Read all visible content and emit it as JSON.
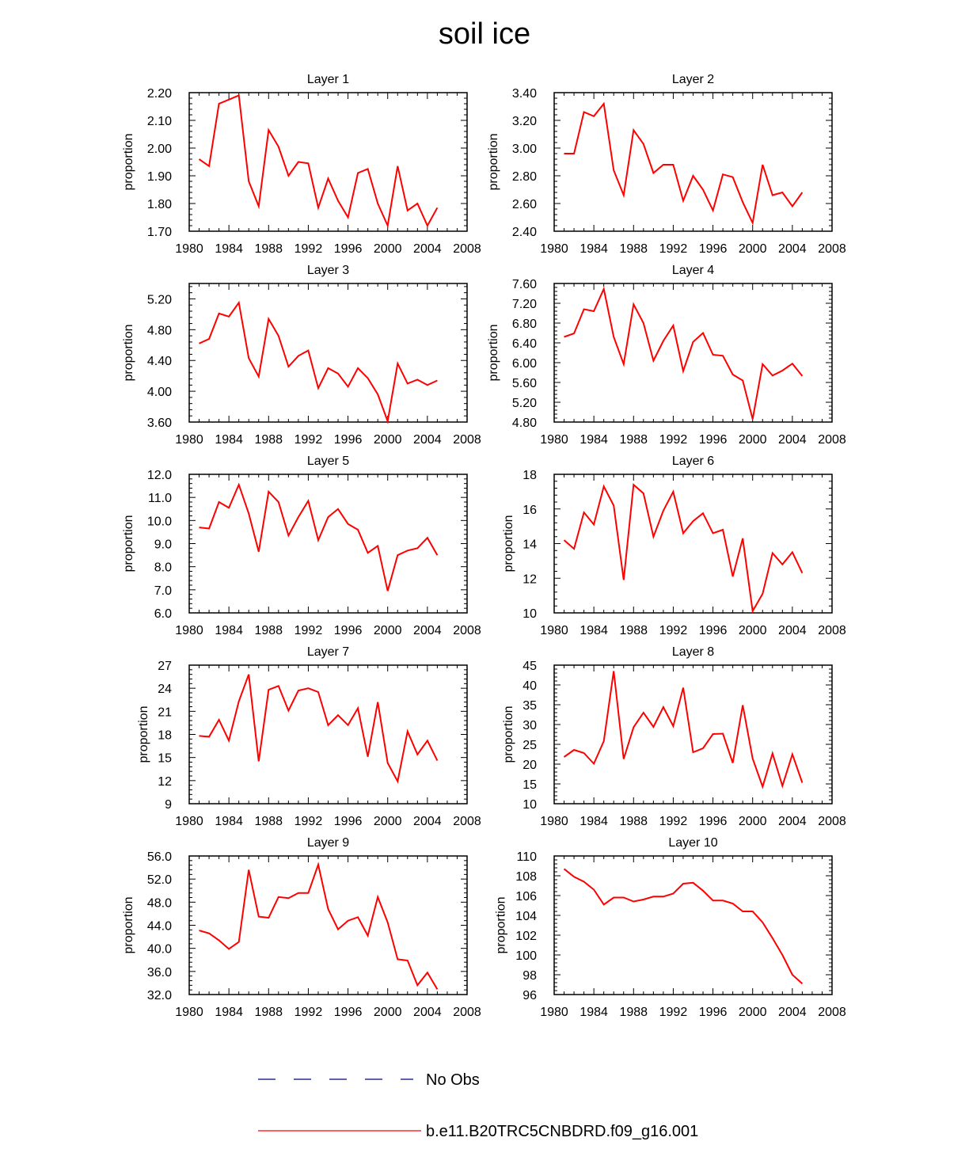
{
  "figure_title": "soil ice",
  "colors": {
    "model": "#ff0000",
    "obs": "#000080",
    "axis": "#000000"
  },
  "legend": [
    {
      "label": "No Obs",
      "style": "dashed",
      "color": "#000080"
    },
    {
      "label": "b.e11.B20TRC5CNBDRD.f09_g16.001",
      "style": "solid",
      "color": "#ff0000"
    }
  ],
  "chart_data": [
    {
      "type": "line",
      "title": "Layer 1",
      "ylabel": "proportion",
      "xlim": [
        1980,
        2008
      ],
      "xticks": [
        1980,
        1984,
        1988,
        1992,
        1996,
        2000,
        2004,
        2008
      ],
      "ylim": [
        1.7,
        2.2
      ],
      "yticks": [
        "1.70",
        "1.80",
        "1.90",
        "2.00",
        "2.10",
        "2.20"
      ],
      "x": [
        1981,
        1982,
        1983,
        1984,
        1985,
        1986,
        1987,
        1988,
        1989,
        1990,
        1991,
        1992,
        1993,
        1994,
        1995,
        1996,
        1997,
        1998,
        1999,
        2000,
        2001,
        2002,
        2003,
        2004,
        2005
      ],
      "series": [
        {
          "name": "b.e11.B20TRC5CNBDRD.f09_g16.001",
          "values": [
            1.96,
            1.935,
            2.16,
            2.175,
            2.19,
            1.88,
            1.79,
            2.065,
            2.005,
            1.9,
            1.95,
            1.945,
            1.785,
            1.89,
            1.81,
            1.75,
            1.91,
            1.925,
            1.8,
            1.72,
            1.935,
            1.775,
            1.8,
            1.72,
            1.785
          ]
        }
      ]
    },
    {
      "type": "line",
      "title": "Layer 2",
      "ylabel": "proportion",
      "xlim": [
        1980,
        2008
      ],
      "xticks": [
        1980,
        1984,
        1988,
        1992,
        1996,
        2000,
        2004,
        2008
      ],
      "ylim": [
        2.4,
        3.4
      ],
      "yticks": [
        "2.40",
        "2.60",
        "2.80",
        "3.00",
        "3.20",
        "3.40"
      ],
      "x": [
        1981,
        1982,
        1983,
        1984,
        1985,
        1986,
        1987,
        1988,
        1989,
        1990,
        1991,
        1992,
        1993,
        1994,
        1995,
        1996,
        1997,
        1998,
        1999,
        2000,
        2001,
        2002,
        2003,
        2004,
        2005
      ],
      "series": [
        {
          "name": "b.e11.B20TRC5CNBDRD.f09_g16.001",
          "values": [
            2.96,
            2.96,
            3.26,
            3.23,
            3.32,
            2.84,
            2.66,
            3.13,
            3.03,
            2.82,
            2.88,
            2.88,
            2.62,
            2.8,
            2.7,
            2.55,
            2.81,
            2.79,
            2.61,
            2.46,
            2.88,
            2.66,
            2.68,
            2.58,
            2.68
          ]
        }
      ]
    },
    {
      "type": "line",
      "title": "Layer 3",
      "ylabel": "proportion",
      "xlim": [
        1980,
        2008
      ],
      "xticks": [
        1980,
        1984,
        1988,
        1992,
        1996,
        2000,
        2004,
        2008
      ],
      "ylim": [
        3.6,
        5.4
      ],
      "yticks": [
        "3.60",
        "4.00",
        "4.40",
        "4.80",
        "5.20"
      ],
      "x": [
        1981,
        1982,
        1983,
        1984,
        1985,
        1986,
        1987,
        1988,
        1989,
        1990,
        1991,
        1992,
        1993,
        1994,
        1995,
        1996,
        1997,
        1998,
        1999,
        2000,
        2001,
        2002,
        2003,
        2004,
        2005
      ],
      "series": [
        {
          "name": "b.e11.B20TRC5CNBDRD.f09_g16.001",
          "values": [
            4.62,
            4.68,
            5.01,
            4.97,
            5.15,
            4.43,
            4.19,
            4.94,
            4.72,
            4.32,
            4.46,
            4.53,
            4.04,
            4.3,
            4.23,
            4.06,
            4.3,
            4.17,
            3.96,
            3.61,
            4.36,
            4.1,
            4.15,
            4.08,
            4.14
          ]
        }
      ]
    },
    {
      "type": "line",
      "title": "Layer 4",
      "ylabel": "proportion",
      "xlim": [
        1980,
        2008
      ],
      "xticks": [
        1980,
        1984,
        1988,
        1992,
        1996,
        2000,
        2004,
        2008
      ],
      "ylim": [
        4.8,
        7.6
      ],
      "yticks": [
        "4.80",
        "5.20",
        "5.60",
        "6.00",
        "6.40",
        "6.80",
        "7.20",
        "7.60"
      ],
      "x": [
        1981,
        1982,
        1983,
        1984,
        1985,
        1986,
        1987,
        1988,
        1989,
        1990,
        1991,
        1992,
        1993,
        1994,
        1995,
        1996,
        1997,
        1998,
        1999,
        2000,
        2001,
        2002,
        2003,
        2004,
        2005
      ],
      "series": [
        {
          "name": "b.e11.B20TRC5CNBDRD.f09_g16.001",
          "values": [
            6.52,
            6.59,
            7.08,
            7.04,
            7.49,
            6.52,
            5.97,
            7.18,
            6.8,
            6.04,
            6.44,
            6.75,
            5.83,
            6.42,
            6.6,
            6.16,
            6.14,
            5.76,
            5.64,
            4.86,
            5.97,
            5.74,
            5.84,
            5.98,
            5.73
          ]
        }
      ]
    },
    {
      "type": "line",
      "title": "Layer 5",
      "ylabel": "proportion",
      "xlim": [
        1980,
        2008
      ],
      "xticks": [
        1980,
        1984,
        1988,
        1992,
        1996,
        2000,
        2004,
        2008
      ],
      "ylim": [
        6.0,
        12.0
      ],
      "yticks": [
        "6.0",
        "7.0",
        "8.0",
        "9.0",
        "10.0",
        "11.0",
        "12.0"
      ],
      "x": [
        1981,
        1982,
        1983,
        1984,
        1985,
        1986,
        1987,
        1988,
        1989,
        1990,
        1991,
        1992,
        1993,
        1994,
        1995,
        1996,
        1997,
        1998,
        1999,
        2000,
        2001,
        2002,
        2003,
        2004,
        2005
      ],
      "series": [
        {
          "name": "b.e11.B20TRC5CNBDRD.f09_g16.001",
          "values": [
            9.7,
            9.65,
            10.8,
            10.55,
            11.55,
            10.3,
            8.65,
            11.25,
            10.8,
            9.35,
            10.15,
            10.85,
            9.15,
            10.15,
            10.5,
            9.85,
            9.6,
            8.6,
            8.9,
            6.95,
            8.5,
            8.7,
            8.8,
            9.25,
            8.5
          ]
        }
      ]
    },
    {
      "type": "line",
      "title": "Layer 6",
      "ylabel": "proportion",
      "xlim": [
        1980,
        2008
      ],
      "xticks": [
        1980,
        1984,
        1988,
        1992,
        1996,
        2000,
        2004,
        2008
      ],
      "ylim": [
        10,
        18
      ],
      "yticks": [
        "10",
        "12",
        "14",
        "16",
        "18"
      ],
      "x": [
        1981,
        1982,
        1983,
        1984,
        1985,
        1986,
        1987,
        1988,
        1989,
        1990,
        1991,
        1992,
        1993,
        1994,
        1995,
        1996,
        1997,
        1998,
        1999,
        2000,
        2001,
        2002,
        2003,
        2004,
        2005
      ],
      "series": [
        {
          "name": "b.e11.B20TRC5CNBDRD.f09_g16.001",
          "values": [
            14.2,
            13.7,
            15.8,
            15.1,
            17.3,
            16.2,
            11.9,
            17.4,
            16.9,
            14.4,
            15.9,
            17.0,
            14.6,
            15.3,
            15.75,
            14.6,
            14.8,
            12.1,
            14.3,
            10.1,
            11.1,
            13.45,
            12.8,
            13.5,
            12.3
          ]
        }
      ]
    },
    {
      "type": "line",
      "title": "Layer 7",
      "ylabel": "proportion",
      "xlim": [
        1980,
        2008
      ],
      "xticks": [
        1980,
        1984,
        1988,
        1992,
        1996,
        2000,
        2004,
        2008
      ],
      "ylim": [
        9,
        27
      ],
      "yticks": [
        "9",
        "12",
        "15",
        "18",
        "21",
        "24",
        "27"
      ],
      "x": [
        1981,
        1982,
        1983,
        1984,
        1985,
        1986,
        1987,
        1988,
        1989,
        1990,
        1991,
        1992,
        1993,
        1994,
        1995,
        1996,
        1997,
        1998,
        1999,
        2000,
        2001,
        2002,
        2003,
        2004,
        2005
      ],
      "series": [
        {
          "name": "b.e11.B20TRC5CNBDRD.f09_g16.001",
          "values": [
            17.8,
            17.7,
            19.9,
            17.2,
            22.3,
            25.8,
            14.5,
            23.8,
            24.3,
            21.1,
            23.7,
            24.0,
            23.5,
            19.2,
            20.5,
            19.2,
            21.4,
            15.1,
            22.2,
            14.3,
            11.9,
            18.4,
            15.4,
            17.2,
            14.6
          ]
        }
      ]
    },
    {
      "type": "line",
      "title": "Layer 8",
      "ylabel": "proportion",
      "xlim": [
        1980,
        2008
      ],
      "xticks": [
        1980,
        1984,
        1988,
        1992,
        1996,
        2000,
        2004,
        2008
      ],
      "ylim": [
        10,
        45
      ],
      "yticks": [
        "10",
        "15",
        "20",
        "25",
        "30",
        "35",
        "40",
        "45"
      ],
      "x": [
        1981,
        1982,
        1983,
        1984,
        1985,
        1986,
        1987,
        1988,
        1989,
        1990,
        1991,
        1992,
        1993,
        1994,
        1995,
        1996,
        1997,
        1998,
        1999,
        2000,
        2001,
        2002,
        2003,
        2004,
        2005
      ],
      "series": [
        {
          "name": "b.e11.B20TRC5CNBDRD.f09_g16.001",
          "values": [
            21.8,
            23.6,
            22.8,
            20.1,
            25.8,
            43.5,
            21.3,
            29.3,
            33.0,
            29.4,
            34.4,
            29.6,
            39.3,
            23.0,
            24.0,
            27.6,
            27.7,
            20.3,
            34.9,
            21.4,
            14.3,
            22.7,
            14.5,
            22.5,
            15.3
          ]
        }
      ]
    },
    {
      "type": "line",
      "title": "Layer 9",
      "ylabel": "proportion",
      "xlim": [
        1980,
        2008
      ],
      "xticks": [
        1980,
        1984,
        1988,
        1992,
        1996,
        2000,
        2004,
        2008
      ],
      "ylim": [
        32.0,
        56.0
      ],
      "yticks": [
        "32.0",
        "36.0",
        "40.0",
        "44.0",
        "48.0",
        "52.0",
        "56.0"
      ],
      "x": [
        1981,
        1982,
        1983,
        1984,
        1985,
        1986,
        1987,
        1988,
        1989,
        1990,
        1991,
        1992,
        1993,
        1994,
        1995,
        1996,
        1997,
        1998,
        1999,
        2000,
        2001,
        2002,
        2003,
        2004,
        2005
      ],
      "series": [
        {
          "name": "b.e11.B20TRC5CNBDRD.f09_g16.001",
          "values": [
            43.1,
            42.6,
            41.4,
            39.9,
            41.1,
            53.6,
            45.5,
            45.3,
            48.9,
            48.7,
            49.6,
            49.6,
            54.5,
            46.8,
            43.3,
            44.8,
            45.4,
            42.2,
            48.9,
            44.5,
            38.1,
            37.9,
            33.6,
            35.8,
            32.9
          ]
        }
      ]
    },
    {
      "type": "line",
      "title": "Layer 10",
      "ylabel": "proportion",
      "xlim": [
        1980,
        2008
      ],
      "xticks": [
        1980,
        1984,
        1988,
        1992,
        1996,
        2000,
        2004,
        2008
      ],
      "ylim": [
        96,
        110
      ],
      "yticks": [
        "96",
        "98",
        "100",
        "102",
        "104",
        "106",
        "108",
        "110"
      ],
      "x": [
        1981,
        1982,
        1983,
        1984,
        1985,
        1986,
        1987,
        1988,
        1989,
        1990,
        1991,
        1992,
        1993,
        1994,
        1995,
        1996,
        1997,
        1998,
        1999,
        2000,
        2001,
        2002,
        2003,
        2004,
        2005
      ],
      "series": [
        {
          "name": "b.e11.B20TRC5CNBDRD.f09_g16.001",
          "values": [
            108.7,
            107.9,
            107.4,
            106.6,
            105.1,
            105.8,
            105.8,
            105.4,
            105.6,
            105.9,
            105.9,
            106.2,
            107.2,
            107.3,
            106.5,
            105.5,
            105.5,
            105.2,
            104.4,
            104.4,
            103.3,
            101.7,
            100.0,
            98.0,
            97.1
          ]
        }
      ]
    }
  ]
}
